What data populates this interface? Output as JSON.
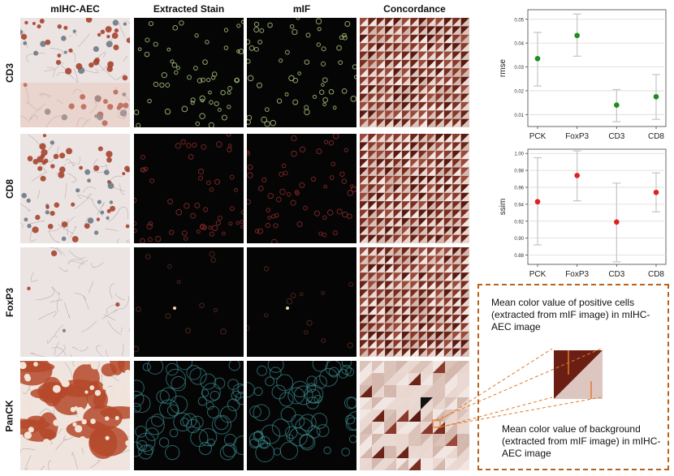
{
  "figure": {
    "columns": [
      "mIHC-AEC",
      "Extracted Stain",
      "mIF",
      "Concordance"
    ],
    "rows": [
      "CD3",
      "CD8",
      "FoxP3",
      "PanCK"
    ]
  },
  "chart_data": [
    {
      "type": "scatter",
      "ylabel": "rmse",
      "categories": [
        "PCK",
        "FoxP3",
        "CD3",
        "CD8"
      ],
      "values": [
        0.0335,
        0.0432,
        0.014,
        0.0175
      ],
      "error_low": [
        0.022,
        0.0345,
        0.007,
        0.008
      ],
      "error_high": [
        0.0445,
        0.0522,
        0.0205,
        0.0268
      ],
      "ylim": [
        0.005,
        0.054
      ],
      "yticks": [
        "0.01",
        "0.02",
        "0.03",
        "0.04",
        "0.05"
      ],
      "color": "#1e8c1e",
      "grid": true
    },
    {
      "type": "scatter",
      "ylabel": "ssim",
      "categories": [
        "PCK",
        "FoxP3",
        "CD3",
        "CD8"
      ],
      "values": [
        0.943,
        0.974,
        0.919,
        0.954
      ],
      "error_low": [
        0.892,
        0.944,
        0.872,
        0.931
      ],
      "error_high": [
        0.995,
        1.003,
        0.965,
        0.977
      ],
      "ylim": [
        0.869,
        1.005
      ],
      "yticks": [
        "0.88",
        "0.90",
        "0.92",
        "0.94",
        "0.96",
        "0.98",
        "1.00"
      ],
      "color": "#e02020",
      "grid": true
    }
  ],
  "inset": {
    "top_text": "Mean color value of positive cells  (extracted from mIF image) in mIHC-AEC image",
    "bottom_text": "Mean color value of background (extracted from mIF image) in mIHC-AEC image"
  }
}
